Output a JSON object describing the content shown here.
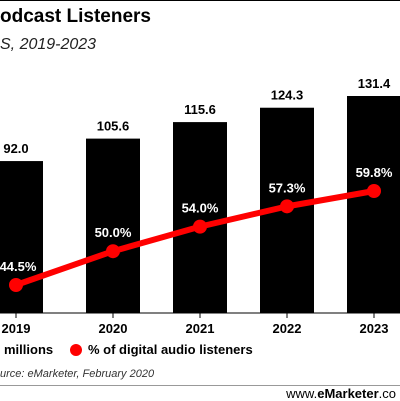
{
  "header": {
    "title": "odcast Listeners",
    "subtitle": "S, 2019-2023"
  },
  "legend": {
    "bars_label": "millions",
    "line_label": "% of digital audio listeners"
  },
  "footer": {
    "source": "urce: eMarketer, February 2020",
    "brand_prefix": "www.",
    "brand_name": "eMarketer",
    "brand_suffix": ".co"
  },
  "colors": {
    "bars": "#000000",
    "line": "#ff0000",
    "bar_label": "#000000",
    "line_label": "#ffffff"
  },
  "chart_data": {
    "type": "bar",
    "categories": [
      "2019",
      "2020",
      "2021",
      "2022",
      "2023"
    ],
    "series": [
      {
        "name": "millions",
        "type": "bar",
        "values": [
          92.0,
          105.6,
          115.6,
          124.3,
          131.4
        ],
        "labels": [
          "92.0",
          "105.6",
          "115.6",
          "124.3",
          "131.4"
        ]
      },
      {
        "name": "% of digital audio listeners",
        "type": "line",
        "values": [
          44.5,
          50.0,
          54.0,
          57.3,
          59.8
        ],
        "labels": [
          "44.5%",
          "50.0%",
          "54.0%",
          "57.3%",
          "59.8%"
        ]
      }
    ],
    "ylim": [
      0,
      140
    ],
    "line_ylim": [
      25,
      65
    ],
    "grid": false,
    "legend_position": "bottom"
  }
}
